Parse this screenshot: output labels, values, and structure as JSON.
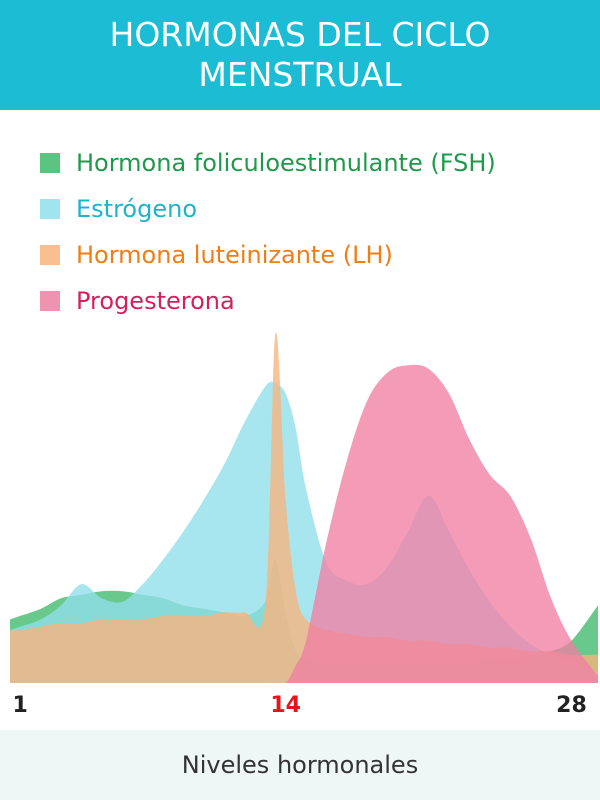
{
  "chart_data": {
    "type": "area",
    "title": "HORMONAS DEL CICLO MENSTRUAL",
    "xlabel": "Niveles hormonales",
    "x": [
      0.5,
      1,
      2,
      3,
      4,
      5,
      6,
      7,
      8,
      9,
      10,
      11,
      12,
      13,
      13.5,
      14,
      14.5,
      15,
      16,
      17,
      18,
      19,
      20,
      21,
      22,
      23,
      24,
      25,
      26,
      27,
      28,
      29.3
    ],
    "xlim": [
      0.5,
      29.3
    ],
    "xticks": [
      1,
      14,
      28
    ],
    "xtick_colors": [
      "#222222",
      "#e8141b",
      "#222222"
    ],
    "ylim": [
      0,
      100
    ],
    "series": [
      {
        "name": "Hormona foliculoestimulante (FSH)",
        "color": "#3fb86a",
        "text_color": "#1e9a4b",
        "values": [
          18,
          19,
          21,
          24,
          25,
          26,
          26,
          25,
          24,
          22,
          21,
          20,
          19,
          23,
          35,
          20,
          9,
          7,
          6,
          6,
          6,
          6,
          6,
          6,
          6,
          6,
          7,
          7,
          8,
          9,
          12,
          22
        ]
      },
      {
        "name": "Estrógeno",
        "color": "#8fdfeb",
        "text_color": "#1eb4cc",
        "values": [
          15,
          16,
          18,
          22,
          28,
          24,
          23,
          28,
          35,
          43,
          52,
          62,
          74,
          84,
          85,
          82,
          72,
          55,
          34,
          29,
          28,
          33,
          43,
          53,
          43,
          32,
          23,
          16,
          11,
          8,
          6,
          3
        ]
      },
      {
        "name": "Hormona luteinizante (LH)",
        "color": "#f9b47c",
        "text_color": "#f07d16",
        "values": [
          15,
          15,
          16,
          17,
          17,
          18,
          18,
          18,
          19,
          19,
          19,
          20,
          20,
          22,
          99,
          52,
          26,
          18,
          15,
          14,
          13,
          13,
          12,
          12,
          11,
          11,
          10,
          10,
          9,
          9,
          8,
          8
        ]
      },
      {
        "name": "Progesterona",
        "color": "#f07fa3",
        "text_color": "#d81f5e",
        "values": [
          0,
          0,
          0,
          0,
          0,
          0,
          0,
          0,
          0,
          0,
          0,
          0,
          0,
          0,
          0,
          0,
          5,
          12,
          40,
          63,
          80,
          88,
          90,
          89,
          82,
          69,
          59,
          53,
          41,
          24,
          12,
          2
        ]
      }
    ]
  }
}
